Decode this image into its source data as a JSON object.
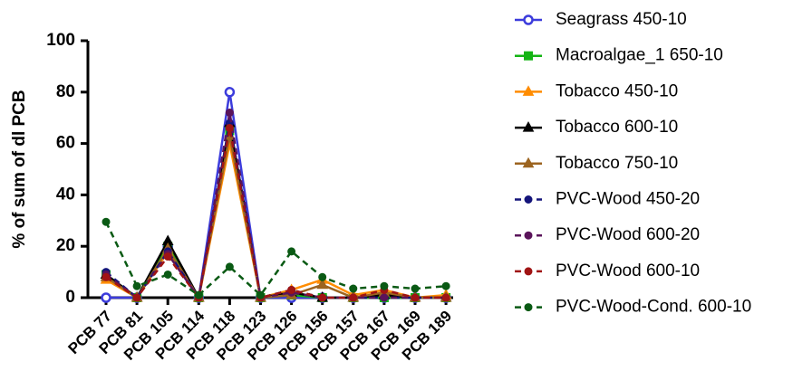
{
  "chart_data": {
    "type": "line",
    "y_label": "% of sum of dl PCB",
    "categories": [
      "PCB 77",
      "PCB 81",
      "PCB 105",
      "PCB 114",
      "PCB 118",
      "PCB 123",
      "PCB 126",
      "PCB 156",
      "PCB 157",
      "PCB 167",
      "PCB 169",
      "PCB 189"
    ],
    "ylim": [
      0,
      100
    ],
    "yticks": [
      0,
      20,
      40,
      60,
      80,
      100
    ],
    "series": [
      {
        "name": "Seagrass 450-10",
        "color": "#3c3cdc",
        "marker": "circle-open",
        "dashed": false,
        "values": [
          0,
          0,
          20,
          0,
          80,
          0,
          0,
          0,
          0,
          0,
          0,
          0
        ]
      },
      {
        "name": "Macroalgae_1 650-10",
        "color": "#14b414",
        "marker": "square",
        "dashed": false,
        "values": [
          9,
          0,
          20,
          0,
          65,
          0,
          1,
          0,
          0,
          0,
          0,
          0
        ]
      },
      {
        "name": "Tobacco 450-10",
        "color": "#ff8c00",
        "marker": "triangle",
        "dashed": false,
        "values": [
          7,
          0,
          18,
          0,
          60,
          0,
          3,
          7,
          1,
          3,
          0,
          1
        ]
      },
      {
        "name": "Tobacco 600-10",
        "color": "#000000",
        "marker": "triangle",
        "dashed": false,
        "values": [
          9,
          0,
          22,
          0,
          68,
          0,
          2,
          0,
          0,
          1,
          0,
          0
        ]
      },
      {
        "name": "Tobacco 750-10",
        "color": "#9c6420",
        "marker": "triangle",
        "dashed": false,
        "values": [
          8,
          0,
          19,
          0,
          63,
          0,
          1,
          5,
          0,
          2,
          0,
          0
        ]
      },
      {
        "name": "PVC-Wood 450-20",
        "color": "#14147a",
        "marker": "circle",
        "dashed": true,
        "values": [
          10,
          0,
          18,
          0,
          68,
          0,
          3,
          0,
          0,
          0,
          0,
          0
        ]
      },
      {
        "name": "PVC-Wood 600-20",
        "color": "#5a145a",
        "marker": "circle",
        "dashed": true,
        "values": [
          9,
          0,
          17,
          0,
          72,
          0,
          2,
          0,
          0,
          0,
          0,
          0
        ]
      },
      {
        "name": "PVC-Wood 600-10",
        "color": "#a01414",
        "marker": "circle",
        "dashed": true,
        "values": [
          8,
          0,
          16,
          0,
          66,
          0,
          3,
          0,
          0,
          3,
          0,
          0
        ]
      },
      {
        "name": "PVC-Wood-Cond. 600-10",
        "color": "#0a5a14",
        "marker": "circle",
        "dashed": true,
        "values": [
          29.5,
          4.5,
          9,
          1,
          12,
          1,
          18,
          8,
          3.5,
          4.5,
          3.5,
          4.5
        ]
      }
    ]
  }
}
